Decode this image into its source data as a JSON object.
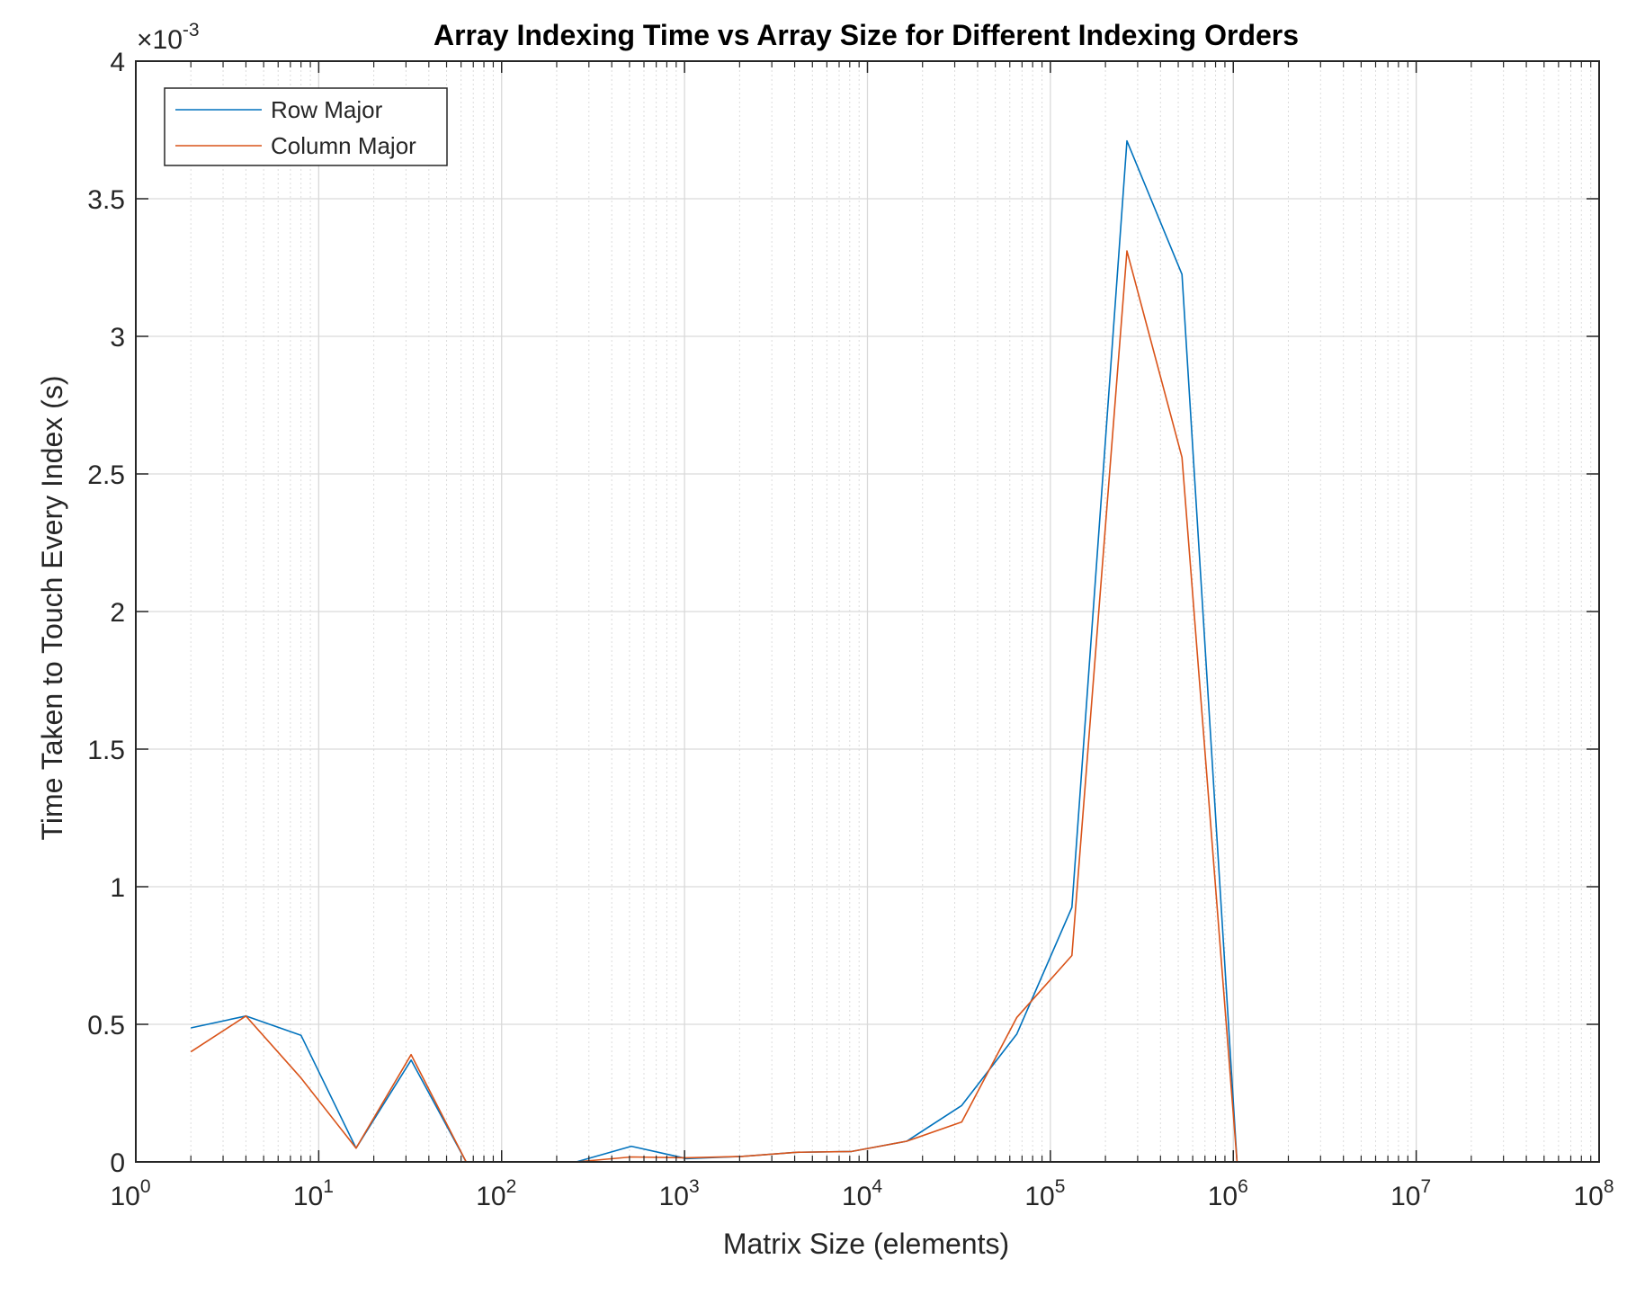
{
  "chart_data": {
    "type": "line",
    "title": "Array Indexing Time vs Array Size for Different Indexing Orders",
    "xlabel": "Matrix Size (elements)",
    "ylabel": "Time Taken to Touch Every Index (s)",
    "x_scale": "log",
    "xlim": [
      1,
      100000000
    ],
    "ylim": [
      0,
      0.004
    ],
    "y_exponent_label": "×10",
    "y_exponent": "-3",
    "x_tick_base": "10",
    "x_tick_exponents": [
      "0",
      "1",
      "2",
      "3",
      "4",
      "5",
      "6",
      "7",
      "8"
    ],
    "x_tick_values": [
      1,
      10,
      100,
      1000,
      10000,
      100000,
      1000000,
      10000000,
      100000000
    ],
    "y_tick_labels": [
      "0",
      "0.5",
      "1",
      "1.5",
      "2",
      "2.5",
      "3",
      "3.5",
      "4"
    ],
    "y_tick_values": [
      0,
      0.0005,
      0.001,
      0.0015,
      0.002,
      0.0025,
      0.003,
      0.0035,
      0.004
    ],
    "grid": true,
    "minor_grid": true,
    "legend_position": "top-left",
    "x": [
      2,
      4,
      8,
      16,
      32,
      64,
      128,
      256,
      512,
      1024,
      2048,
      4096,
      8192,
      16384,
      32768,
      65536,
      131072,
      262144,
      524288,
      1048576,
      2097152,
      4194304,
      8388608,
      16777216
    ],
    "series": [
      {
        "name": "Row Major",
        "color": "#0072BD",
        "values": [
          0.000487,
          0.00053,
          0.00046,
          5e-05,
          0.00037,
          0,
          0,
          0,
          5.7e-05,
          1.2e-05,
          2e-05,
          3.5e-05,
          3.8e-05,
          7.5e-05,
          0.000205,
          0.000465,
          0.000925,
          0.00371,
          0.003225,
          0,
          0,
          0,
          0,
          0
        ]
      },
      {
        "name": "Column Major",
        "color": "#D95319",
        "values": [
          0.0004,
          0.00053,
          0.000305,
          5e-05,
          0.00039,
          0,
          0,
          0,
          1.8e-05,
          1.5e-05,
          2e-05,
          3.5e-05,
          3.8e-05,
          7.5e-05,
          0.000145,
          0.000525,
          0.00075,
          0.00331,
          0.00256,
          0,
          0,
          0,
          0,
          0
        ]
      }
    ]
  }
}
